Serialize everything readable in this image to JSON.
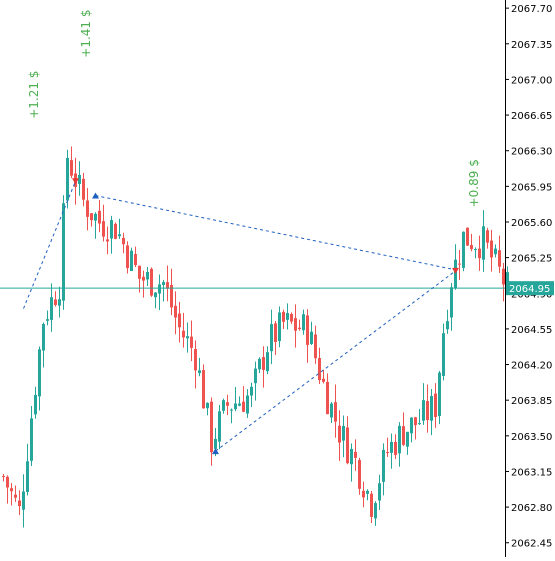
{
  "chart_data": {
    "type": "candlestick",
    "title": "",
    "xlabel": "",
    "ylabel": "",
    "ylim": [
      2062.31,
      2067.78
    ],
    "y_ticks": [
      "2067.70",
      "2067.35",
      "2067.00",
      "2066.65",
      "2066.30",
      "2065.95",
      "2065.60",
      "2065.25",
      "2064.90",
      "2064.55",
      "2064.20",
      "2063.85",
      "2063.50",
      "2063.15",
      "2062.80",
      "2062.45"
    ],
    "current_price": "2064.95",
    "colors": {
      "up": "#26a69a",
      "down": "#ef5350",
      "price_line": "#26a69a",
      "trade_line": "#1f5fbf",
      "profit_text": "#4caf50",
      "grid": "#000000"
    },
    "trade_labels": [
      {
        "text": "+1.21 $",
        "price": 2066.85,
        "bar": 7
      },
      {
        "text": "+1.41 $",
        "price": 2067.45,
        "bar": 20
      },
      {
        "text": "+0.89 $",
        "price": 2065.98,
        "bar": 117
      }
    ],
    "trades": [
      {
        "entry_bar": 5,
        "entry_price": 2064.75,
        "exit_bar": 18,
        "exit_price": 2066.0,
        "entry_marker": "none",
        "exit_marker": "sell"
      },
      {
        "entry_bar": 23,
        "entry_price": 2065.86,
        "exit_bar": 113,
        "exit_price": 2065.13,
        "entry_marker": "buy",
        "exit_marker": "none"
      },
      {
        "entry_bar": 53,
        "entry_price": 2063.35,
        "exit_bar": 113,
        "exit_price": 2065.12,
        "entry_marker": "buy",
        "exit_marker": "sell"
      }
    ],
    "candles_seed": 7,
    "candles_path": [
      [
        0,
        2063.1
      ],
      [
        4,
        2062.75
      ],
      [
        10,
        2064.65
      ],
      [
        14,
        2065.0
      ],
      [
        16,
        2066.25
      ],
      [
        20,
        2065.8
      ],
      [
        24,
        2065.6
      ],
      [
        28,
        2065.55
      ],
      [
        34,
        2065.05
      ],
      [
        40,
        2065.0
      ],
      [
        44,
        2064.55
      ],
      [
        48,
        2064.3
      ],
      [
        52,
        2063.45
      ],
      [
        56,
        2063.8
      ],
      [
        62,
        2063.9
      ],
      [
        66,
        2064.4
      ],
      [
        70,
        2064.6
      ],
      [
        76,
        2064.55
      ],
      [
        80,
        2064.0
      ],
      [
        84,
        2063.55
      ],
      [
        88,
        2063.25
      ],
      [
        92,
        2062.85
      ],
      [
        96,
        2063.35
      ],
      [
        100,
        2063.55
      ],
      [
        104,
        2063.65
      ],
      [
        108,
        2063.8
      ],
      [
        110,
        2064.55
      ],
      [
        112,
        2065.05
      ],
      [
        115,
        2065.45
      ],
      [
        120,
        2065.4
      ],
      [
        124,
        2065.1
      ],
      [
        126,
        2064.95
      ]
    ]
  }
}
